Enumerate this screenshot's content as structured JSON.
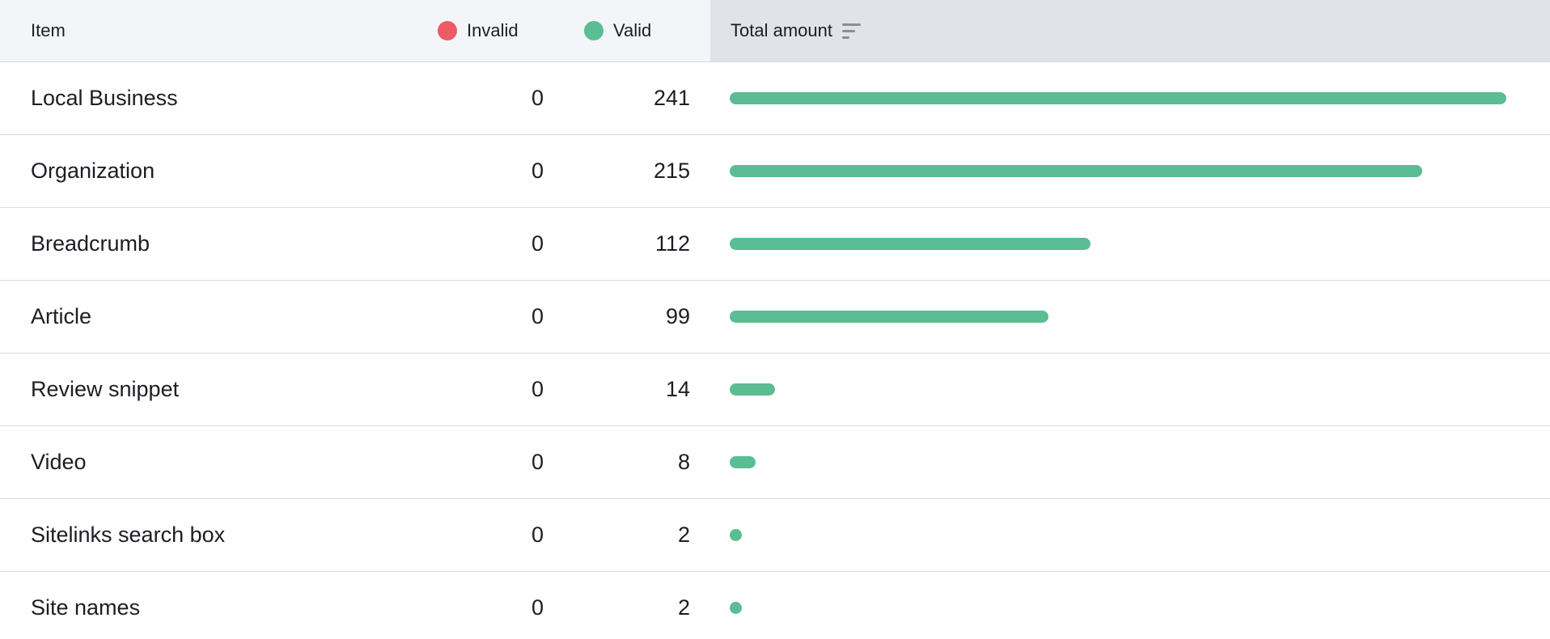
{
  "header": {
    "item_label": "Item",
    "invalid_label": "Invalid",
    "valid_label": "Valid",
    "total_label": "Total amount",
    "sort_icon": "sort-icon"
  },
  "colors": {
    "invalid": "#ec5b62",
    "valid": "#5bbd93"
  },
  "rows": [
    {
      "name": "Local Business",
      "invalid": "0",
      "valid": "241",
      "total": 241
    },
    {
      "name": "Organization",
      "invalid": "0",
      "valid": "215",
      "total": 215
    },
    {
      "name": "Breadcrumb",
      "invalid": "0",
      "valid": "112",
      "total": 112
    },
    {
      "name": "Article",
      "invalid": "0",
      "valid": "99",
      "total": 99
    },
    {
      "name": "Review snippet",
      "invalid": "0",
      "valid": "14",
      "total": 14
    },
    {
      "name": "Video",
      "invalid": "0",
      "valid": "8",
      "total": 8
    },
    {
      "name": "Sitelinks search box",
      "invalid": "0",
      "valid": "2",
      "total": 2
    },
    {
      "name": "Site names",
      "invalid": "0",
      "valid": "2",
      "total": 2
    }
  ]
}
